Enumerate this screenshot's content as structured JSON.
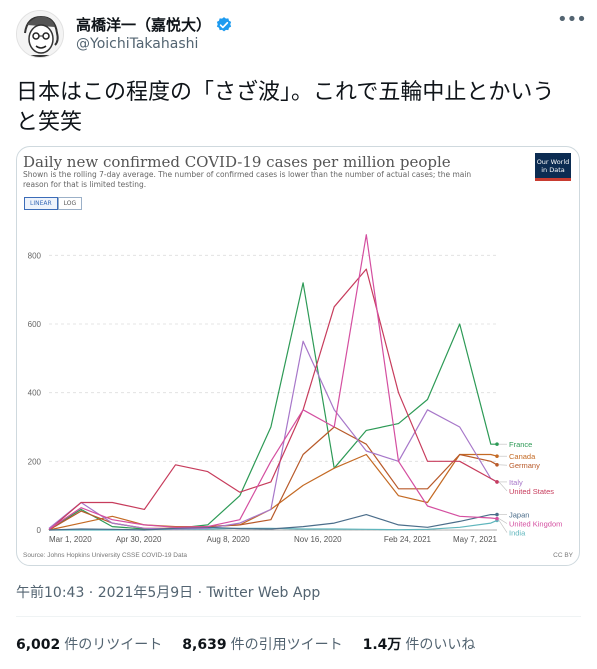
{
  "user": {
    "display_name": "高橋洋一（嘉悦大）",
    "handle": "@YoichiTakahashi"
  },
  "tweet": {
    "text": "日本はこの程度の「さざ波」。これで五輪中止とかいうと笑笑"
  },
  "meta": {
    "time": "午前10:43",
    "date": "2021年5月9日",
    "separator": " · ",
    "app": "Twitter Web App"
  },
  "stats": {
    "retweets_count": "6,002",
    "retweets_label": "件のリツイート",
    "quotes_count": "8,639",
    "quotes_label": "件の引用ツイート",
    "likes_count": "1.4万",
    "likes_label": "件のいいね"
  },
  "icons": {
    "more": "more-icon",
    "verified": "verified-icon",
    "verified_color": "#1d9bf0"
  },
  "chart_data": {
    "type": "line",
    "title": "Daily new confirmed COVID-19 cases per million people",
    "subtitle": "Shown is the rolling 7-day average. The number of confirmed cases is lower than the number of actual cases; the main reason for that is limited testing.",
    "logo_line1": "Our World",
    "logo_line2": "in Data",
    "scale_linear": "LINEAR",
    "scale_log": "LOG",
    "y_ticks": [
      "0",
      "200",
      "400",
      "600",
      "800"
    ],
    "ylim": [
      0,
      900
    ],
    "x_ticks": [
      "Mar 1, 2020",
      "Apr 30, 2020",
      "Aug 8, 2020",
      "Nov 16, 2020",
      "Feb 24, 2021",
      "May 7, 2021"
    ],
    "x": [
      "2020-03-01",
      "2020-04-01",
      "2020-05-01",
      "2020-06-01",
      "2020-07-01",
      "2020-08-01",
      "2020-09-01",
      "2020-10-01",
      "2020-11-01",
      "2020-12-01",
      "2021-01-01",
      "2021-02-01",
      "2021-03-01",
      "2021-04-01",
      "2021-05-01",
      "2021-05-07"
    ],
    "source": "Source: Johns Hopkins University CSSE COVID-19 Data",
    "license": "CC BY",
    "series": [
      {
        "name": "India",
        "color": "#5fb6bd",
        "values": [
          0,
          0,
          0,
          1,
          2,
          3,
          5,
          5,
          3,
          3,
          2,
          1,
          2,
          8,
          20,
          28
        ]
      },
      {
        "name": "France",
        "color": "#2d9a56",
        "values": [
          1,
          60,
          10,
          3,
          5,
          15,
          100,
          300,
          720,
          180,
          290,
          310,
          380,
          600,
          250,
          250
        ]
      },
      {
        "name": "Canada",
        "color": "#c46a24",
        "values": [
          0,
          20,
          40,
          15,
          10,
          10,
          15,
          60,
          130,
          180,
          220,
          100,
          80,
          220,
          220,
          215
        ]
      },
      {
        "name": "Germany",
        "color": "#b85a2a",
        "values": [
          0,
          55,
          20,
          5,
          5,
          10,
          15,
          30,
          220,
          300,
          250,
          120,
          120,
          220,
          200,
          190
        ]
      },
      {
        "name": "Italy",
        "color": "#a777c9",
        "values": [
          5,
          80,
          20,
          5,
          3,
          5,
          20,
          60,
          550,
          350,
          230,
          200,
          350,
          300,
          150,
          140
        ]
      },
      {
        "name": "United States",
        "color": "#c73c5c",
        "values": [
          0,
          80,
          80,
          60,
          190,
          170,
          110,
          140,
          350,
          650,
          760,
          400,
          200,
          200,
          150,
          140
        ]
      },
      {
        "name": "Japan",
        "color": "#4b6d8a",
        "values": [
          0,
          3,
          2,
          0,
          5,
          8,
          4,
          3,
          10,
          20,
          45,
          15,
          8,
          25,
          45,
          45
        ]
      },
      {
        "name": "United Kingdom",
        "color": "#d44fa0",
        "values": [
          2,
          65,
          30,
          15,
          8,
          10,
          30,
          200,
          350,
          300,
          860,
          200,
          70,
          40,
          35,
          33
        ]
      }
    ]
  }
}
